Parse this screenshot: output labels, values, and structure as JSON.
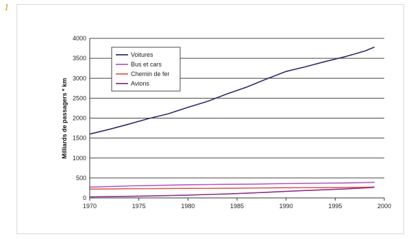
{
  "figure_number": "1",
  "chart_data": {
    "type": "line",
    "title": "",
    "xlabel": "",
    "ylabel": "Milliards de passagers * km",
    "xlim": [
      1970,
      2000
    ],
    "ylim": [
      0,
      4000
    ],
    "x_ticks": [
      1970,
      1975,
      1980,
      1985,
      1990,
      1995,
      2000
    ],
    "y_ticks": [
      0,
      500,
      1000,
      1500,
      2000,
      2500,
      3000,
      3500,
      4000
    ],
    "grid": true,
    "legend_position": "top-left",
    "x": [
      1970,
      1972,
      1974,
      1976,
      1978,
      1980,
      1982,
      1984,
      1986,
      1988,
      1990,
      1992,
      1994,
      1996,
      1998,
      1999
    ],
    "series": [
      {
        "name": "Voitures",
        "color": "#2b2b6b",
        "values": [
          1600,
          1720,
          1850,
          1990,
          2110,
          2270,
          2420,
          2610,
          2780,
          2980,
          3170,
          3290,
          3420,
          3540,
          3680,
          3780
        ]
      },
      {
        "name": "Bus et cars",
        "color": "#b05cc0",
        "values": [
          270,
          285,
          300,
          310,
          320,
          330,
          335,
          340,
          345,
          350,
          360,
          365,
          370,
          375,
          385,
          390
        ]
      },
      {
        "name": "Chemin de fer",
        "color": "#e05858",
        "values": [
          220,
          225,
          230,
          232,
          235,
          238,
          240,
          243,
          245,
          250,
          255,
          258,
          260,
          262,
          268,
          272
        ]
      },
      {
        "name": "Avions",
        "color": "#8a2f8a",
        "values": [
          25,
          32,
          40,
          48,
          58,
          70,
          85,
          100,
          118,
          140,
          165,
          185,
          205,
          225,
          250,
          265
        ]
      }
    ]
  }
}
